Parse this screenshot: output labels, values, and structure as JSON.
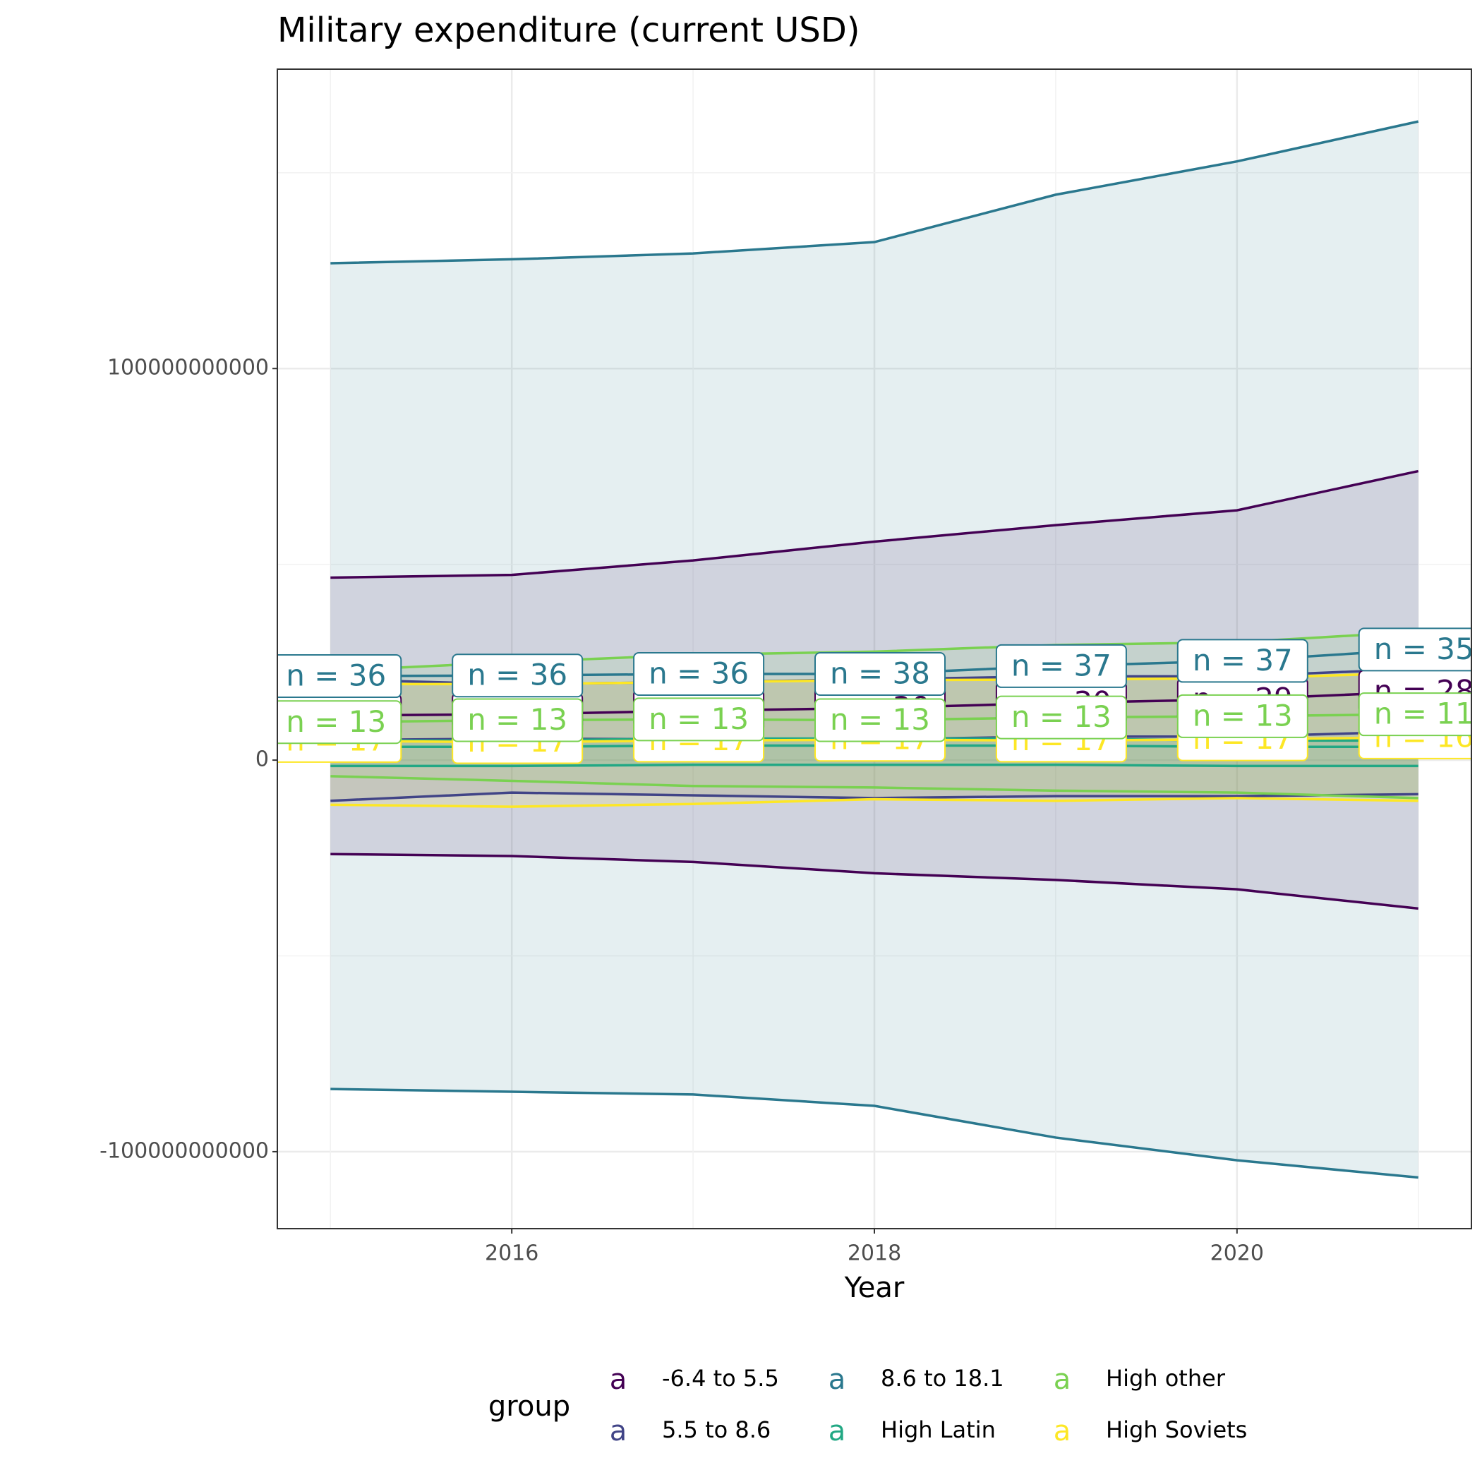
{
  "chart_data": {
    "type": "ribbon",
    "title": "Military expenditure (current USD)",
    "x_label": "Year",
    "x": [
      2015,
      2016,
      2017,
      2018,
      2019,
      2020,
      2021
    ],
    "xlim": [
      2014.707,
      2021.293
    ],
    "xticks": [
      2016,
      2018,
      2020
    ],
    "ylim": [
      -119660000000,
      176460000000
    ],
    "yticks": [
      100000000000,
      0,
      -100000000000
    ],
    "grid": true,
    "legend_title": "group",
    "legend_position": "bottom",
    "legend_key_glyph": "a",
    "series": [
      {
        "name": "-6.4 to 5.5",
        "color": "#440154",
        "values": [
          11400000000,
          11700000000,
          12600000000,
          13300000000,
          14600000000,
          15500000000,
          17500000000
        ],
        "upper": [
          46600000000,
          47300000000,
          51000000000,
          55800000000,
          60000000000,
          63800000000,
          73800000000
        ],
        "lower": [
          -24000000000,
          -24500000000,
          -26000000000,
          -28900000000,
          -30600000000,
          -33000000000,
          -37900000000
        ],
        "labels": [
          "n = 30",
          "n = 30",
          "n = 30",
          "n = 30",
          "n = 30",
          "n = 29",
          "n = 28"
        ]
      },
      {
        "name": "5.5 to 8.6",
        "color": "#414487",
        "values": [
          5100000000,
          5500000000,
          5300000000,
          5300000000,
          6000000000,
          6000000000,
          7300000000
        ],
        "upper": [
          20600000000,
          19400000000,
          19900000000,
          20600000000,
          21400000000,
          21400000000,
          23300000000
        ],
        "lower": [
          -10400000000,
          -8300000000,
          -9000000000,
          -9700000000,
          -9200000000,
          -9200000000,
          -8700000000
        ]
      },
      {
        "name": "8.6 to 18.1",
        "color": "#2a788e",
        "values": [
          21450000000,
          21600000000,
          22000000000,
          22000000000,
          24000000000,
          25350000000,
          28250000000
        ],
        "upper": [
          126900000000,
          127900000000,
          129400000000,
          132300000000,
          144400000000,
          152900000000,
          163100000000
        ],
        "lower": [
          -84000000000,
          -84700000000,
          -85400000000,
          -88300000000,
          -96400000000,
          -102200000000,
          -106600000000
        ],
        "labels": [
          "n = 36",
          "n = 36",
          "n = 36",
          "n = 38",
          "n = 37",
          "n = 37",
          "n = 35"
        ]
      },
      {
        "name": "High Latin",
        "color": "#22a884",
        "values": [
          3400000000,
          3400000000,
          3700000000,
          3700000000,
          3700000000,
          3400000000,
          3400000000
        ],
        "upper": [
          5000000000,
          5000000000,
          5500000000,
          5500000000,
          5500000000,
          5000000000,
          5000000000
        ],
        "lower": [
          -1500000000,
          -1500000000,
          -1200000000,
          -1200000000,
          -1200000000,
          -1500000000,
          -1500000000
        ]
      },
      {
        "name": "High other",
        "color": "#7ad151",
        "values": [
          9700000000,
          10200000000,
          10400000000,
          10200000000,
          10900000000,
          11200000000,
          11700000000
        ],
        "upper": [
          22800000000,
          25000000000,
          26900000000,
          27700000000,
          29400000000,
          30100000000,
          32800000000
        ],
        "lower": [
          -4100000000,
          -5300000000,
          -6600000000,
          -7000000000,
          -7800000000,
          -8300000000,
          -9700000000
        ],
        "labels": [
          "n = 13",
          "n = 13",
          "n = 13",
          "n = 13",
          "n = 13",
          "n = 13",
          "n = 11"
        ]
      },
      {
        "name": "High Soviets",
        "color": "#fde725",
        "values": [
          4900000000,
          4600000000,
          5000000000,
          5200000000,
          5000000000,
          5300000000,
          5800000000
        ],
        "upper": [
          19400000000,
          19400000000,
          19900000000,
          20400000000,
          20600000000,
          20900000000,
          22300000000
        ],
        "lower": [
          -11400000000,
          -11900000000,
          -11200000000,
          -10000000000,
          -10400000000,
          -9700000000,
          -10400000000
        ],
        "labels": [
          "n = 17",
          "n = 17",
          "n = 17",
          "n = 17",
          "n = 17",
          "n = 17",
          "n = 16"
        ]
      }
    ]
  }
}
